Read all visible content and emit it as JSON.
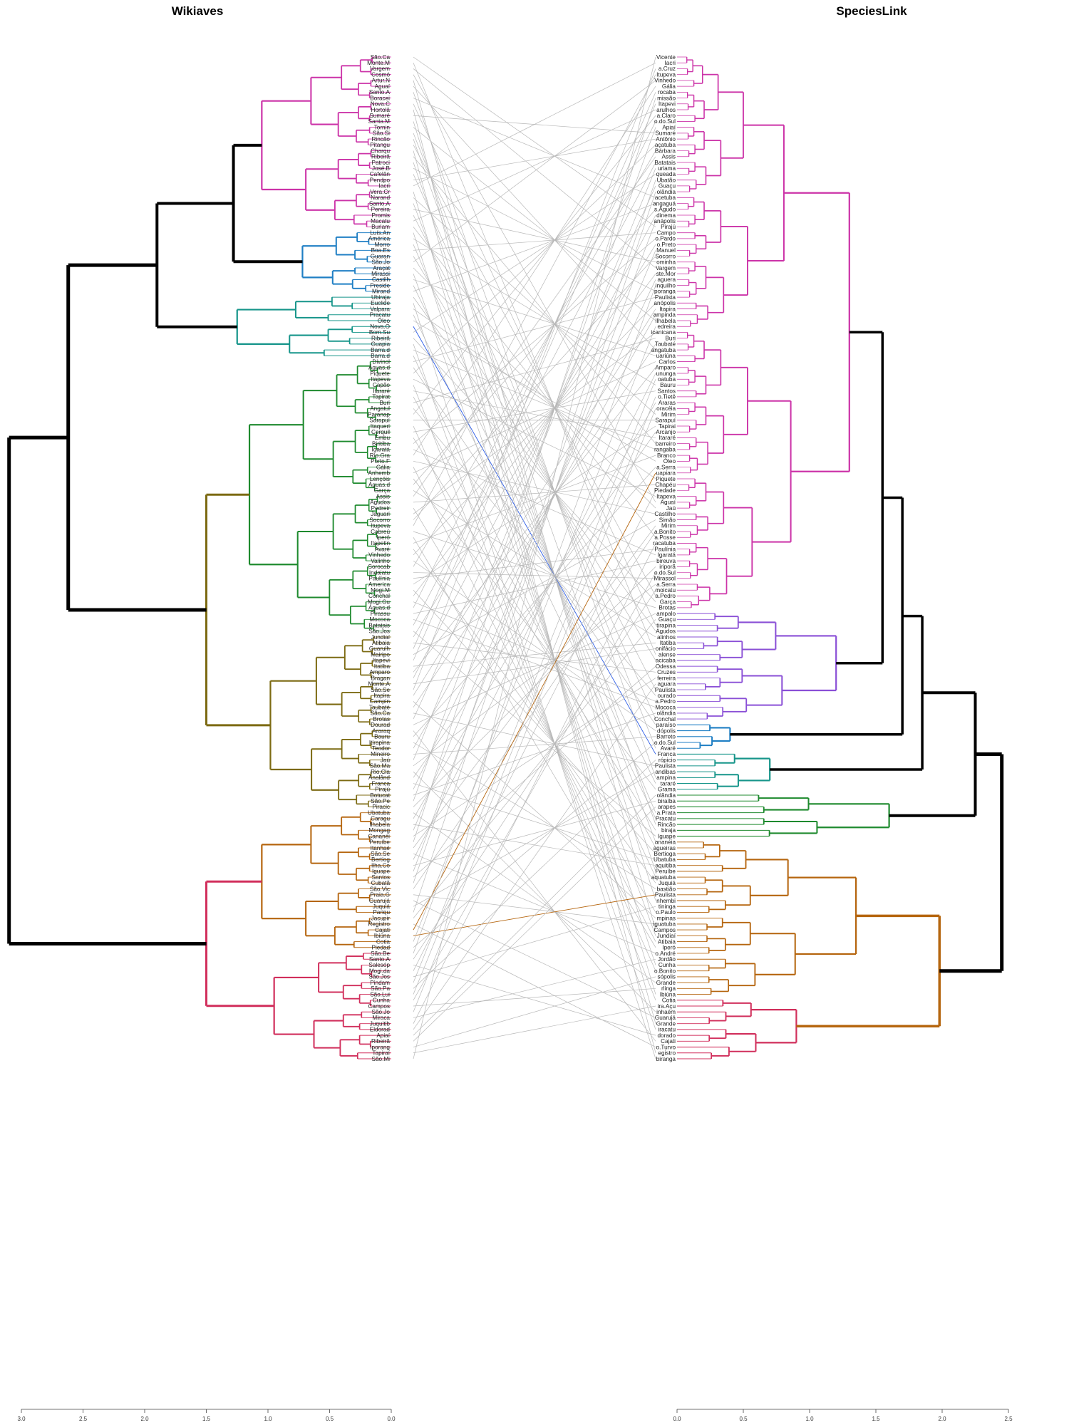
{
  "titles": {
    "left": "Wikiaves",
    "right": "SpeciesLink"
  },
  "colors": {
    "connector": "#b8b8b8",
    "highlight": "#2b5ce6",
    "trunk": "#000000",
    "palette": [
      "#cc33a8",
      "#8a4fd6",
      "#1f7fc4",
      "#16958a",
      "#1e8a2e",
      "#7c6a12",
      "#b5650e",
      "#d12f5c"
    ]
  },
  "axes": {
    "left": {
      "ticks": [
        "3.0",
        "2.5",
        "2.0",
        "1.5",
        "1.0",
        "0.5",
        "0.0"
      ],
      "min": 0,
      "max": 3.0,
      "reversed": true
    },
    "right": {
      "ticks": [
        "0.0",
        "0.5",
        "1.0",
        "1.5",
        "2.0",
        "2.5"
      ],
      "min": 0,
      "max": 2.5,
      "reversed": false
    }
  },
  "left_leaves": [
    "São.Ca",
    "Monte.M",
    "Vargem",
    "Cosmó",
    "Artur.N",
    "Aguaí",
    "Santo.A",
    "Boracei",
    "Nova.C",
    "Hortolâ",
    "Sumaré",
    "Santa.M",
    "Tornin",
    "São.Si",
    "Rincão",
    "Pitangu",
    "Charqu",
    "Ribeirã",
    "Patroci",
    "José.B",
    "Cafelân",
    "Pendpo",
    "Iacri",
    "Vera.Cr",
    "Narand",
    "Santo.A",
    "Pereira",
    "Promis",
    "Macatu",
    "Buriam",
    "Luís.An",
    "América",
    "Morro",
    "Boa.Es",
    "Guaran",
    "São.Jo",
    "Araçat",
    "Mirassi",
    "Castilh",
    "Preside",
    "Mirand",
    "Ubiraja",
    "Euclide",
    "Valpara",
    "Pracatu",
    "Óleo",
    "Nova.O",
    "Bom.Su",
    "Ribeirã",
    "Guapia",
    "Barra.d",
    "Barra.d",
    "Divinol",
    "Águas.d",
    "Piquete",
    "Itapeva",
    "Capão",
    "Itararé",
    "Tapirat",
    "Buri",
    "Angatul",
    "Paranap",
    "Sarapuí",
    "Itaqueri",
    "Cerquil",
    "Embu",
    "Biritiba",
    "Igaratá",
    "Rio.Gra",
    "Porto.F",
    "Gália",
    "Anhemb",
    "Lençóis",
    "Águas.d",
    "Garça",
    "Assis",
    "Agudos",
    "Pedreir",
    "Jaguari",
    "Socorro",
    "Itupeva",
    "Cabreú",
    "Iperó",
    "Itapetin",
    "Avaré",
    "Vinhedo",
    "Valinho",
    "Sorocab",
    "Indaiatu",
    "Paulínia",
    "America",
    "Mogi.M",
    "Conchal",
    "Mogi.Gu",
    "Águas.d",
    "Pirassu",
    "Mococa",
    "Batatais",
    "São.Jos",
    "Jundiaí",
    "Atibaia",
    "Guarulh",
    "Mairipo",
    "Itapevi",
    "Itatiba",
    "Amparo",
    "Bragan",
    "Monte.A",
    "São.Se",
    "Itapira",
    "Campin",
    "Taubaté",
    "São.Ca",
    "Brotas",
    "Dourad",
    "Araraq",
    "Bauru",
    "Itirapina",
    "Teodor",
    "Mineiro",
    "Jaú",
    "São.Ma",
    "Rio.Cla",
    "Analând",
    "Franca",
    "Pirajú",
    "Botucat",
    "São.Pe",
    "Piracic",
    "Ubatuba",
    "Caragu",
    "Ilhabela",
    "Mongag",
    "Cananéi",
    "Peruíbe",
    "Itanhaé",
    "São.Se",
    "Bertiog",
    "Ilha.Co",
    "Iguape",
    "Santos",
    "Cubatã",
    "São.Vic",
    "Praia.G",
    "Guarujá",
    "Juquiá",
    "Pariqu",
    "Jacupir",
    "Registro",
    "Cajati",
    "Ibiúna",
    "Cotia",
    "Piedad",
    "São.Be",
    "Santo.A",
    "Salesóp",
    "Mogi.da",
    "São.Jos",
    "Pindam",
    "São.Pa",
    "São.Lui",
    "Cunha",
    "Campos",
    "São.Jo",
    "Miraca",
    "Juquitib",
    "Eldorad",
    "Apiaí",
    "Ribeirã",
    "Iporang",
    "Tapiraí",
    "São.Mi"
  ],
  "right_leaves": [
    "Vicente",
    "Iacri",
    "a.Cruz",
    "Itupeva",
    "Vinhedo",
    "Gália",
    "rocaba",
    "missão",
    "Itapevi",
    "arulhos",
    "a.Claro",
    "o.do.Sul",
    "Apiaí",
    "Sumaré",
    "Antônio",
    "açatuba",
    "Bárbara",
    "Assis",
    "Batatais",
    "uriama",
    "queada",
    "Ubatão",
    "Guaçu",
    "olândia",
    "acetuba",
    "angaguá",
    "s.Agudo",
    "dinema",
    "anápolis",
    "Pirajú",
    "Campo",
    "o.Pardo",
    "o.Preto",
    "Manuel",
    "Socorro",
    "ominha",
    "Vargem",
    "ste.Mor",
    "aguera",
    "inquilho",
    "poranga",
    "Paulista",
    "anópolis",
    "Itapira",
    "ampinda",
    "Ilhabela",
    "edreira",
    "icanicana",
    "Buri",
    "Taubaté",
    "angatuba",
    "uariúna",
    "Carlos",
    "Amparo",
    "ununga",
    "oatuba",
    "Bauru",
    "Santos",
    "o.Tietê",
    "Araras",
    "oracéia",
    "Mirim",
    "Sarapuí",
    "Tapirai",
    "Arcanjo",
    "Itararé",
    "barreiro",
    "rangaba",
    "Branco",
    "Óleo",
    "a.Serra",
    "uapiara",
    "Piquete",
    "Chapéu",
    "Piedade",
    "Itapeva",
    "Aguaí",
    "Jaú",
    "Castilho",
    "Simão",
    "Mirim",
    "a.Bonito",
    "a.Posse",
    "racatuba",
    "Paulínia",
    "Igaratá",
    "bireuva",
    "iriporã",
    "o.do.Sul",
    "Mirassol",
    "a.Serra",
    "moicatu",
    "a.Pedro",
    "Garça",
    "Brotas",
    "ampalo",
    "Guaçu",
    "tirapina",
    "Agudos",
    "alinhos",
    "Itatiba",
    "onifácio",
    "alense",
    "acicaba",
    "Odessa",
    "Cruzes",
    "ferreira",
    "aguara",
    "Paulista",
    "ourado",
    "a.Pedro",
    "Mococa",
    "olândia",
    "Conchal",
    "paraíso",
    "dópolis",
    "Barreto",
    "o.do.Sul",
    "Avaré",
    "Franca",
    "rópicio",
    "Paulista",
    "andibas",
    "ampina",
    "tararé",
    "Grama",
    "olândia",
    "biraíba",
    "arapes",
    "a.Prata",
    "Pracatu",
    "Rincão",
    "biraja",
    "Iguape",
    "ananéia",
    "agueiras",
    "Bertioga",
    "Ubatuba",
    "aquitiba",
    "Peruíbe",
    "aquatuba",
    "Juquiá",
    "bastião",
    "Paulista",
    "nhembi",
    "tininga",
    "o.Paulo",
    "mpinas",
    "iguatuba",
    "Campos",
    "Jundiaí",
    "Atibaia",
    "Iperó",
    "o.André",
    "Jordão",
    "Cunha",
    "o.Bonito",
    "sópolis",
    "Grande",
    "rlinga",
    "Ibiúna",
    "Cotia",
    "ira.Açu",
    "inhaém",
    "Guarujá",
    "Grande",
    "iracatu",
    "dorado",
    "Cajati",
    "o.Turvo",
    "egistro",
    "biranga"
  ]
}
